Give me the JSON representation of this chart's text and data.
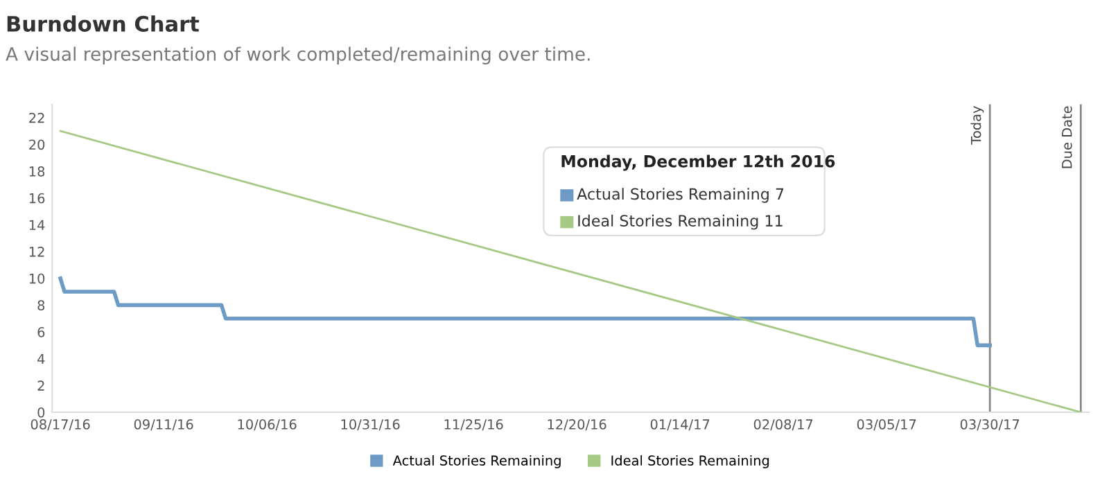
{
  "chart_data": {
    "type": "line",
    "title": "Burndown Chart",
    "subtitle": "A visual representation of work completed/remaining over time.",
    "series": [
      {
        "name": "Actual Stories Remaining",
        "color": "#6e9bc5",
        "x": [
          "2016-08-17",
          "2016-08-18",
          "2016-08-30",
          "2016-08-31",
          "2016-09-25",
          "2016-09-26",
          "2017-03-26",
          "2017-03-27",
          "2017-03-30"
        ],
        "values": [
          10,
          9,
          9,
          8,
          8,
          7,
          7,
          5,
          5
        ]
      },
      {
        "name": "Ideal Stories Remaining",
        "color": "#a6c986",
        "x": [
          "2016-08-17",
          "2017-04-21"
        ],
        "values": [
          21,
          0
        ]
      }
    ],
    "xlim": [
      "2016-08-15",
      "2017-04-23"
    ],
    "ylim": [
      0,
      23
    ],
    "xticks": [
      {
        "value": "2016-08-17",
        "label": "08/17/16"
      },
      {
        "value": "2016-09-11",
        "label": "09/11/16"
      },
      {
        "value": "2016-10-06",
        "label": "10/06/16"
      },
      {
        "value": "2016-10-31",
        "label": "10/31/16"
      },
      {
        "value": "2016-11-25",
        "label": "11/25/16"
      },
      {
        "value": "2016-12-20",
        "label": "12/20/16"
      },
      {
        "value": "2017-01-14",
        "label": "01/14/17"
      },
      {
        "value": "2017-02-08",
        "label": "02/08/17"
      },
      {
        "value": "2017-03-05",
        "label": "03/05/17"
      },
      {
        "value": "2017-03-30",
        "label": "03/30/17"
      }
    ],
    "yticks": [
      0,
      2,
      4,
      6,
      8,
      10,
      12,
      14,
      16,
      18,
      20,
      22
    ],
    "ref_lines": [
      {
        "axis": "x",
        "value": "2017-03-30",
        "label": "Today",
        "color": "#888888"
      },
      {
        "axis": "x",
        "value": "2017-04-21",
        "label": "Due Date",
        "color": "#888888"
      }
    ],
    "annotations": [
      "Monday, December 12th 2016",
      "Actual Stories Remaining 7",
      "Ideal Stories Remaining 11"
    ],
    "grid": false,
    "legend": "bottom",
    "marker": "none",
    "line_style": "solid"
  }
}
